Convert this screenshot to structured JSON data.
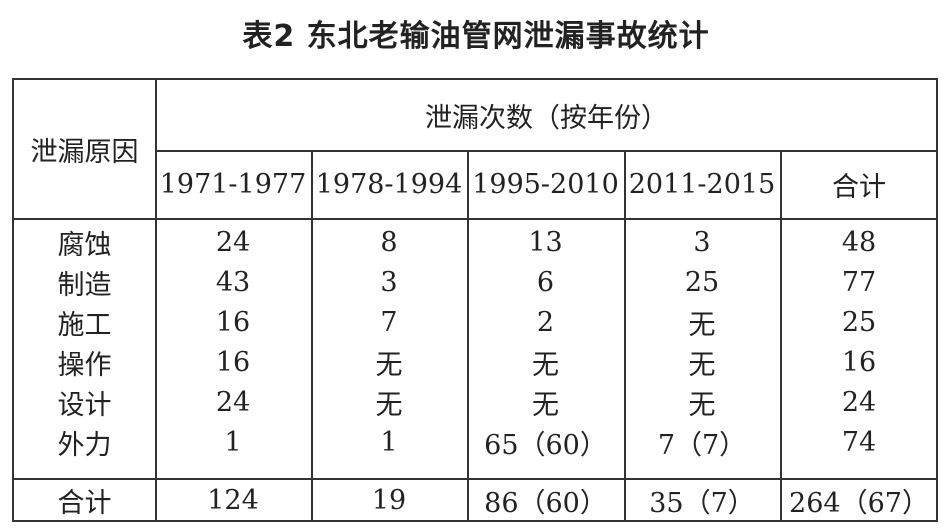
{
  "title": "表2  东北老输油管网泄漏事故统计",
  "table": {
    "row_header": "泄漏原因",
    "group_header": "泄漏次数（按年份）",
    "columns": [
      "1971-1977",
      "1978-1994",
      "1995-2010",
      "2011-2015",
      "合计"
    ],
    "rows": [
      {
        "cause": "腐蚀",
        "values": [
          "24",
          "8",
          "13",
          "3",
          "48"
        ]
      },
      {
        "cause": "制造",
        "values": [
          "43",
          "3",
          "6",
          "25",
          "77"
        ]
      },
      {
        "cause": "施工",
        "values": [
          "16",
          "7",
          "2",
          "无",
          "25"
        ]
      },
      {
        "cause": "操作",
        "values": [
          "16",
          "无",
          "无",
          "无",
          "16"
        ]
      },
      {
        "cause": "设计",
        "values": [
          "24",
          "无",
          "无",
          "无",
          "24"
        ]
      },
      {
        "cause": "外力",
        "values": [
          "1",
          "1",
          "65（60）",
          "7（7）",
          "74"
        ]
      }
    ],
    "total": {
      "cause": "合计",
      "values": [
        "124",
        "19",
        "86（60）",
        "35（7）",
        "264（67）"
      ]
    }
  }
}
